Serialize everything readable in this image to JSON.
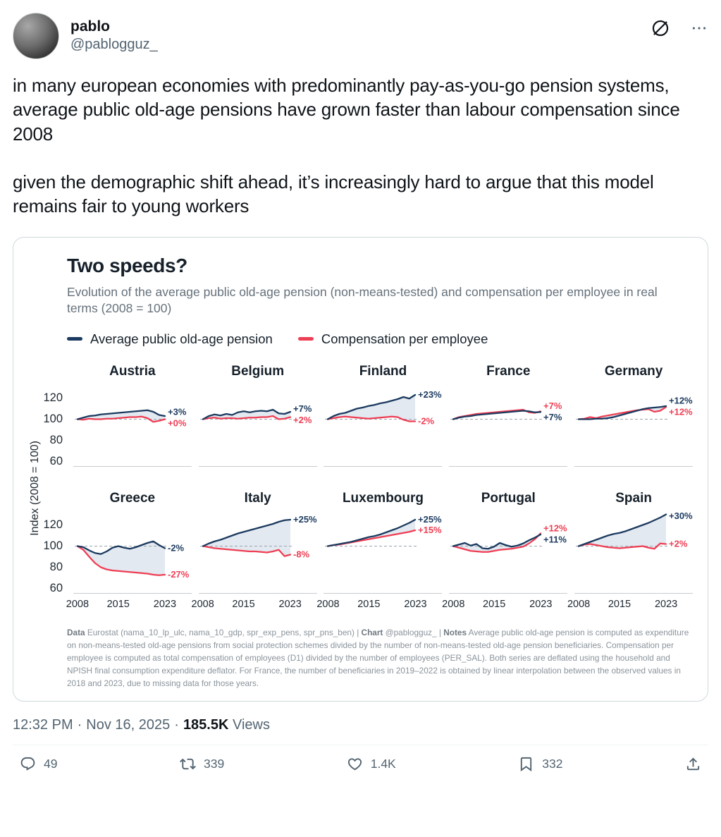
{
  "user": {
    "name": "pablo",
    "handle": "@pablogguz_"
  },
  "tweet": {
    "paragraph1": "in many european economies with predominantly pay-as-you-go pension systems, average public old-age pensions have grown faster than labour compensation since 2008",
    "paragraph2": "given the demographic shift ahead, it’s increasingly hard to argue that this model remains fair to young workers"
  },
  "icons": {
    "grok": "slashed-circle",
    "more": "ellipsis",
    "reply": "speech-bubble",
    "repost": "retweet-arrows",
    "like": "heart",
    "bookmark": "bookmark-flag",
    "share": "share-up-arrow"
  },
  "chart_data": {
    "type": "line",
    "title": "Two speeds?",
    "subtitle": "Evolution of the average public old-age pension (non-means-tested) and compensation per employee in real terms (2008 = 100)",
    "legend": [
      {
        "label": "Average public old-age pension"
      },
      {
        "label": "Compensation per employee"
      }
    ],
    "colors": {
      "pension": "#1b3a5f",
      "compensation": "#ee3e54",
      "area": "#ccd7e3"
    },
    "ylabel": "Index (2008 = 100)",
    "ylim": [
      55,
      135
    ],
    "yticks": [
      120,
      100,
      80,
      60
    ],
    "xticks": [
      2008,
      2015,
      2023
    ],
    "grid": "dashed reference line at 100",
    "legend_position": "top-left",
    "x": [
      2008,
      2009,
      2010,
      2011,
      2012,
      2013,
      2014,
      2015,
      2016,
      2017,
      2018,
      2019,
      2020,
      2021,
      2022,
      2023
    ],
    "panels": [
      {
        "country": "Austria",
        "pension": [
          100,
          101.5,
          103,
          103.5,
          104.5,
          105,
          105.5,
          106,
          106.5,
          107,
          107.5,
          108,
          108.5,
          107,
          104,
          103
        ],
        "compensation": [
          100,
          99.5,
          100.5,
          100,
          100,
          100.5,
          100.5,
          101,
          101.5,
          102,
          102,
          102.5,
          101,
          97.5,
          98.5,
          100
        ],
        "pension_label": "+3%",
        "comp_label": "+0%"
      },
      {
        "country": "Belgium",
        "pension": [
          100,
          103,
          104.5,
          103.5,
          105,
          104,
          106.5,
          107.5,
          106.5,
          107.5,
          108,
          107.5,
          109,
          105.5,
          105,
          107
        ],
        "compensation": [
          100,
          101,
          101.5,
          100.5,
          101,
          101,
          100.5,
          101,
          101.5,
          101.5,
          102,
          102,
          103,
          100,
          100.5,
          102
        ],
        "pension_label": "+7%",
        "comp_label": "+2%"
      },
      {
        "country": "Finland",
        "pension": [
          100,
          103,
          105,
          106,
          108,
          110,
          111,
          112.5,
          113.5,
          115,
          116,
          117.5,
          119,
          121,
          119.5,
          123
        ],
        "compensation": [
          100,
          101,
          102,
          102.5,
          102,
          101.5,
          101,
          100.5,
          101,
          101.5,
          102,
          102.5,
          102,
          99.5,
          98,
          98
        ],
        "pension_label": "+23%",
        "comp_label": "-2%"
      },
      {
        "country": "France",
        "pension": [
          100,
          101.5,
          102.5,
          103,
          104,
          104.5,
          105,
          105.5,
          106,
          106.5,
          107,
          107.5,
          108,
          107.5,
          106.5,
          106.8
        ],
        "compensation": [
          100,
          102,
          103,
          104,
          105,
          105.5,
          106,
          106.5,
          107,
          107.5,
          108,
          108.5,
          109,
          106.5,
          106,
          107.4
        ],
        "pension_label": "+7%",
        "comp_label": "+7%"
      },
      {
        "country": "Germany",
        "pension": [
          100,
          100,
          100,
          100.5,
          100.5,
          101,
          102,
          103.5,
          105,
          106.5,
          108,
          109.5,
          110.5,
          111,
          111.5,
          112.4
        ],
        "compensation": [
          100,
          100.5,
          102,
          101,
          102.5,
          103.5,
          104.5,
          105.5,
          106.5,
          107.5,
          108.5,
          109,
          109.5,
          107,
          108,
          111.6
        ],
        "pension_label": "+12%",
        "comp_label": "+12%"
      },
      {
        "country": "Greece",
        "pension": [
          100,
          99,
          96,
          93.5,
          92.5,
          95,
          98.5,
          100,
          98.5,
          97.5,
          99,
          101,
          103,
          104.5,
          101,
          98
        ],
        "compensation": [
          100,
          96.5,
          90,
          84,
          80,
          78,
          77,
          76.5,
          76,
          75.5,
          75,
          74.5,
          74,
          73,
          72.5,
          73
        ],
        "pension_label": "-2%",
        "comp_label": "-27%"
      },
      {
        "country": "Italy",
        "pension": [
          100,
          102.5,
          104.5,
          106,
          108,
          110,
          112,
          113.5,
          115,
          116.5,
          118,
          119.5,
          121,
          123,
          124.5,
          125
        ],
        "compensation": [
          100,
          99,
          98,
          97.5,
          97,
          96.5,
          96,
          95.5,
          95,
          95,
          94.5,
          94,
          95,
          96.5,
          90.5,
          92
        ],
        "pension_label": "+25%",
        "comp_label": "-8%"
      },
      {
        "country": "Luxembourg",
        "pension": [
          100,
          101,
          102,
          103,
          104,
          105.5,
          107,
          108.5,
          109.5,
          111,
          113,
          115,
          117,
          119.5,
          122,
          125
        ],
        "compensation": [
          100,
          101,
          101.5,
          102.5,
          103.5,
          104.5,
          105.5,
          106.5,
          107.5,
          108.5,
          109.5,
          110.5,
          111.5,
          112.5,
          113.5,
          115
        ],
        "pension_label": "+25%",
        "comp_label": "+15%"
      },
      {
        "country": "Portugal",
        "pension": [
          100,
          101.5,
          103,
          100.5,
          102,
          98,
          97.5,
          99.5,
          103,
          101,
          99.5,
          100.5,
          102.5,
          105.5,
          108,
          111
        ],
        "compensation": [
          100,
          98.5,
          97,
          95.5,
          95,
          94.5,
          94.5,
          95.5,
          96.5,
          97,
          97.5,
          98.5,
          99.5,
          102.5,
          106.5,
          112
        ],
        "pension_label": "+11%",
        "comp_label": "+12%"
      },
      {
        "country": "Spain",
        "pension": [
          100,
          102,
          104,
          106,
          108,
          110,
          111.5,
          112.5,
          114,
          116,
          118,
          120,
          122,
          124.5,
          127,
          130
        ],
        "compensation": [
          100,
          101.5,
          102,
          101,
          100,
          99,
          98.5,
          98,
          98.5,
          99,
          99.5,
          100,
          98.5,
          97.5,
          102.5,
          102
        ],
        "pension_label": "+30%",
        "comp_label": "+2%"
      }
    ],
    "notes": {
      "data_label": "Data",
      "data_text": " Eurostat (nama_10_lp_ulc, nama_10_gdp, spr_exp_pens, spr_pns_ben) | ",
      "chart_label": "Chart",
      "chart_text": " @pablogguz_ | ",
      "notes_label": "Notes",
      "notes_text": " Average public old-age pension is computed as expenditure on non-means-tested old-age pensions from social protection schemes divided by the number of non-means-tested old-age pension beneficiaries. Compensation per employee is computed as total compensation of employees (D1) divided by the number of employees (PER_SAL). Both series are deflated using the household and NPISH final consumption expenditure deflator. For France, the number of beneficiaries in 2019–2022 is obtained by linear interpolation between the observed values in 2018 and 2023, due to missing data for those years."
    }
  },
  "meta": {
    "time": "12:32 PM",
    "sep": "·",
    "date": "Nov 16, 2025",
    "views": "185.5K",
    "views_label": "Views"
  },
  "actions": {
    "reply_count": "49",
    "repost_count": "339",
    "like_count": "1.4K",
    "bookmark_count": "332"
  }
}
